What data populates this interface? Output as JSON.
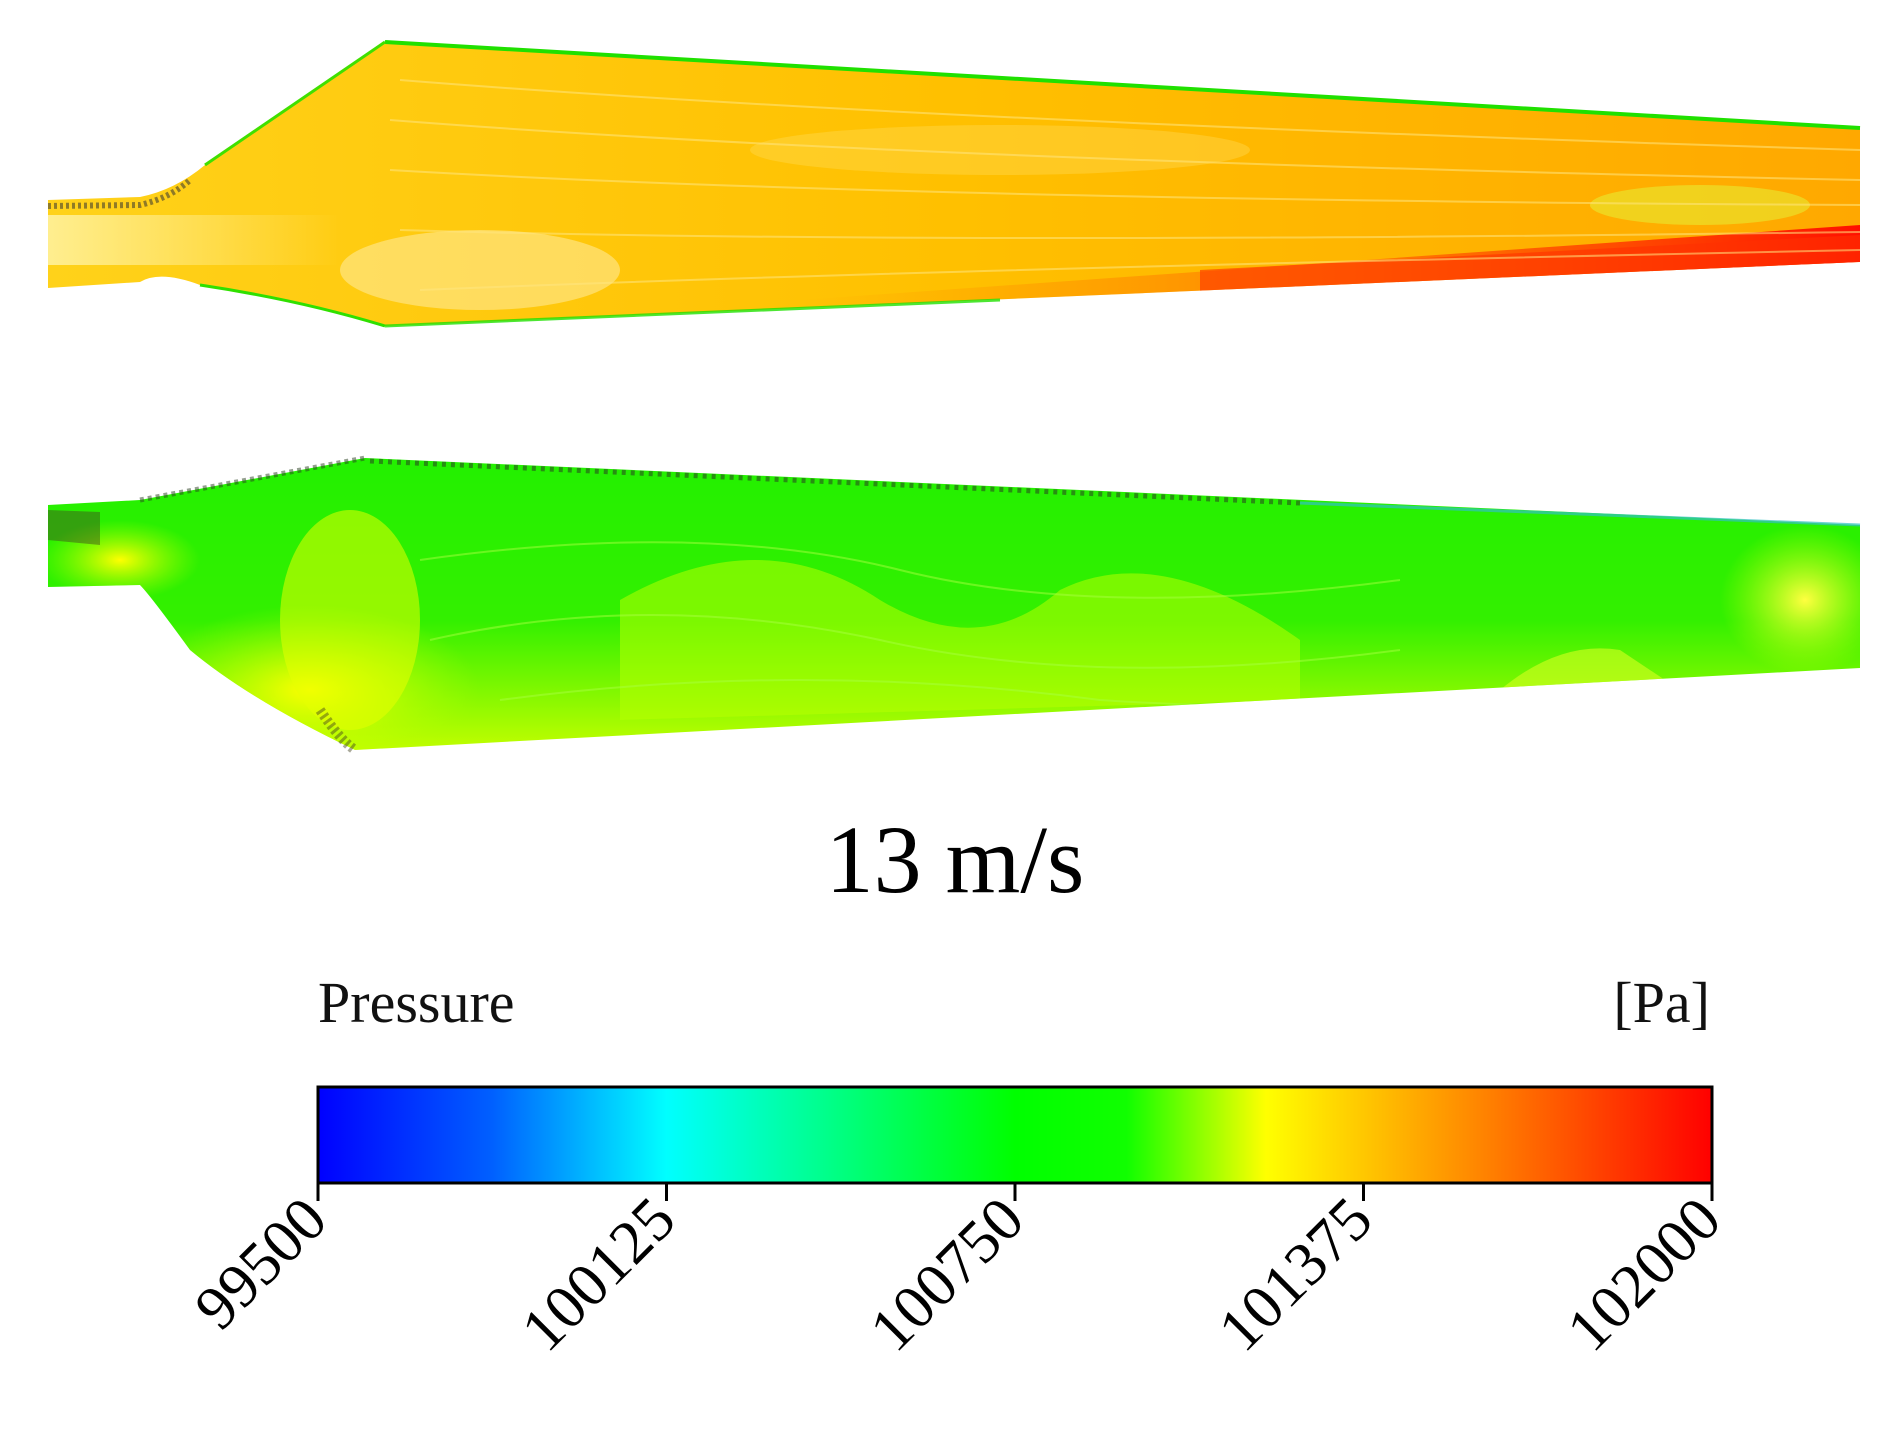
{
  "caption": "13 m/s",
  "legend": {
    "title": "Pressure",
    "unit": "[Pa]",
    "ticks": [
      "99500",
      "100125",
      "100750",
      "101375",
      "102000"
    ],
    "range": [
      99500,
      102000
    ],
    "colormap": [
      "#0000ff",
      "#0080ff",
      "#00ffff",
      "#00ff80",
      "#00ff00",
      "#80ff00",
      "#ffff00",
      "#ff8000",
      "#ff0000"
    ]
  },
  "blades": [
    {
      "view": "upper blade surface",
      "dominant_colors": [
        "#ffd000",
        "#ffb000",
        "#ff3000",
        "#00ff00"
      ]
    },
    {
      "view": "lower blade surface",
      "dominant_colors": [
        "#00ff00",
        "#66ff00",
        "#ccff00",
        "#ffff00"
      ]
    }
  ]
}
